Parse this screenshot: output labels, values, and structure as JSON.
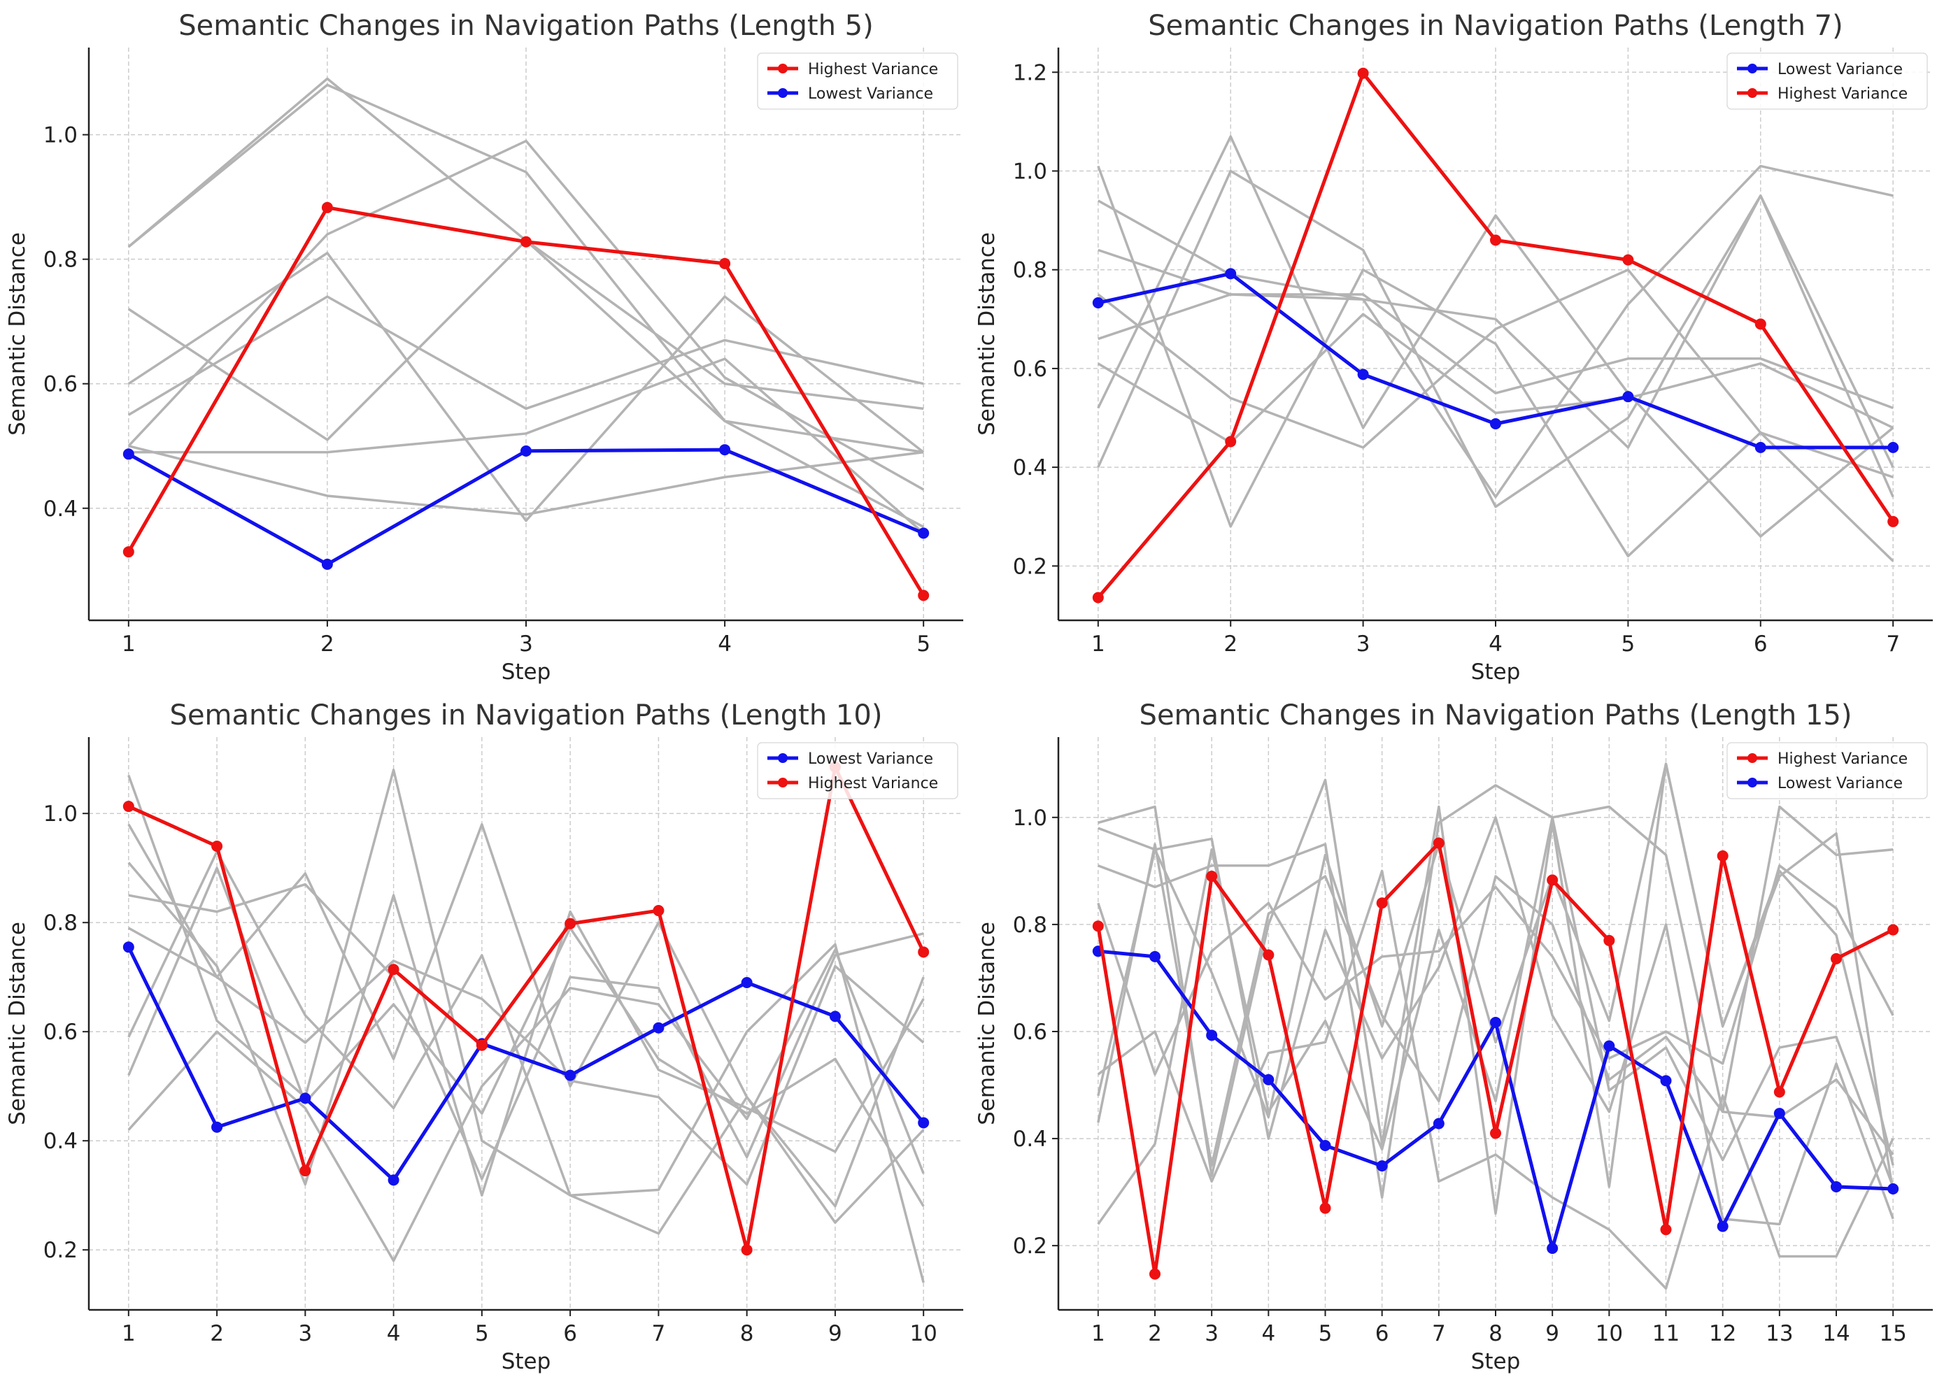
{
  "colors": {
    "highlight_red": "#ee1111",
    "highlight_blue": "#1111ee",
    "background_lines": "#b3b3b3",
    "grid": "#cccccc",
    "legend_border": "#dddddd"
  },
  "chart_data": [
    {
      "type": "line",
      "title": "Semantic Changes in Navigation Paths (Length 5)",
      "xlabel": "Step",
      "ylabel": "Semantic Distance",
      "x": [
        1,
        2,
        3,
        4,
        5
      ],
      "xlim": [
        0.8,
        5.2
      ],
      "ylim": [
        0.22,
        1.14
      ],
      "yticks": [
        0.4,
        0.6,
        0.8,
        1.0
      ],
      "grid": true,
      "legend_position": "top-right",
      "legend_order": [
        "Highest Variance",
        "Lowest Variance"
      ],
      "series": [
        {
          "name": "Highest Variance",
          "color": "#ee1111",
          "values": [
            0.33,
            0.883,
            0.828,
            0.793,
            0.26
          ]
        },
        {
          "name": "Lowest Variance",
          "color": "#1111ee",
          "values": [
            0.487,
            0.31,
            0.492,
            0.494,
            0.36
          ]
        }
      ],
      "background_series": [
        [
          0.82,
          1.09,
          0.83,
          0.54,
          0.49
        ],
        [
          0.82,
          1.08,
          0.94,
          0.54,
          0.37
        ],
        [
          0.72,
          0.51,
          0.83,
          0.6,
          0.56
        ],
        [
          0.55,
          0.74,
          0.56,
          0.67,
          0.6
        ],
        [
          0.6,
          0.81,
          0.38,
          0.74,
          0.49
        ],
        [
          0.5,
          0.84,
          0.99,
          0.61,
          0.43
        ],
        [
          0.49,
          0.49,
          0.52,
          0.64,
          0.36
        ],
        [
          0.5,
          0.42,
          0.39,
          0.45,
          0.49
        ]
      ]
    },
    {
      "type": "line",
      "title": "Semantic Changes in Navigation Paths (Length 7)",
      "xlabel": "Step",
      "ylabel": "Semantic Distance",
      "x": [
        1,
        2,
        3,
        4,
        5,
        6,
        7
      ],
      "xlim": [
        0.7,
        7.3
      ],
      "ylim": [
        0.09,
        1.25
      ],
      "yticks": [
        0.2,
        0.4,
        0.6,
        0.8,
        1.0,
        1.2
      ],
      "grid": true,
      "legend_position": "top-right",
      "legend_order": [
        "Lowest Variance",
        "Highest Variance"
      ],
      "series": [
        {
          "name": "Highest Variance",
          "color": "#ee1111",
          "values": [
            0.136,
            0.452,
            1.198,
            0.86,
            0.82,
            0.69,
            0.29
          ]
        },
        {
          "name": "Lowest Variance",
          "color": "#1111ee",
          "values": [
            0.733,
            0.792,
            0.588,
            0.488,
            0.543,
            0.44,
            0.44
          ]
        }
      ],
      "background_series": [
        [
          1.01,
          0.28,
          0.8,
          0.65,
          0.22,
          0.47,
          0.21
        ],
        [
          0.94,
          0.79,
          0.74,
          0.34,
          0.73,
          1.01,
          0.95
        ],
        [
          0.84,
          0.75,
          0.74,
          0.7,
          0.44,
          0.95,
          0.34
        ],
        [
          0.66,
          0.75,
          0.75,
          0.55,
          0.62,
          0.62,
          0.52
        ],
        [
          0.61,
          0.45,
          0.71,
          0.51,
          0.54,
          0.61,
          0.48
        ],
        [
          0.52,
          1.07,
          0.48,
          0.91,
          0.55,
          0.26,
          0.48
        ],
        [
          0.4,
          1.0,
          0.84,
          0.32,
          0.5,
          0.95,
          0.4
        ],
        [
          0.75,
          0.54,
          0.44,
          0.68,
          0.8,
          0.47,
          0.38
        ]
      ]
    },
    {
      "type": "line",
      "title": "Semantic Changes in Navigation Paths (Length 10)",
      "xlabel": "Step",
      "ylabel": "Semantic Distance",
      "x": [
        1,
        2,
        3,
        4,
        5,
        6,
        7,
        8,
        9,
        10
      ],
      "xlim": [
        0.55,
        10.45
      ],
      "ylim": [
        0.09,
        1.14
      ],
      "yticks": [
        0.2,
        0.4,
        0.6,
        0.8,
        1.0
      ],
      "grid": true,
      "legend_position": "top-right",
      "legend_order": [
        "Lowest Variance",
        "Highest Variance"
      ],
      "series": [
        {
          "name": "Highest Variance",
          "color": "#ee1111",
          "values": [
            1.013,
            0.94,
            0.345,
            0.714,
            0.575,
            0.798,
            0.822,
            0.2,
            1.085,
            0.746
          ]
        },
        {
          "name": "Lowest Variance",
          "color": "#1111ee",
          "values": [
            0.755,
            0.425,
            0.478,
            0.328,
            0.578,
            0.52,
            0.607,
            0.69,
            0.628,
            0.433
          ]
        }
      ],
      "background_series": [
        [
          1.07,
          0.62,
          0.48,
          1.08,
          0.4,
          0.3,
          0.31,
          0.6,
          0.76,
          0.14
        ],
        [
          0.98,
          0.7,
          0.89,
          0.55,
          0.98,
          0.5,
          0.8,
          0.48,
          0.25,
          0.42
        ],
        [
          0.91,
          0.72,
          0.32,
          0.85,
          0.3,
          0.82,
          0.53,
          0.46,
          0.38,
          0.66
        ],
        [
          0.85,
          0.82,
          0.87,
          0.7,
          0.33,
          0.7,
          0.68,
          0.37,
          0.74,
          0.78
        ],
        [
          0.79,
          0.7,
          0.58,
          0.73,
          0.66,
          0.51,
          0.48,
          0.32,
          0.72,
          0.58
        ],
        [
          0.59,
          0.93,
          0.63,
          0.46,
          0.74,
          0.3,
          0.23,
          0.48,
          0.28,
          0.7
        ],
        [
          0.52,
          0.9,
          0.47,
          0.65,
          0.45,
          0.79,
          0.55,
          0.45,
          0.55,
          0.28
        ],
        [
          0.42,
          0.6,
          0.46,
          0.18,
          0.5,
          0.68,
          0.65,
          0.44,
          0.75,
          0.34
        ]
      ]
    },
    {
      "type": "line",
      "title": "Semantic Changes in Navigation Paths (Length 15)",
      "xlabel": "Step",
      "ylabel": "Semantic Distance",
      "x": [
        1,
        2,
        3,
        4,
        5,
        6,
        7,
        8,
        9,
        10,
        11,
        12,
        13,
        14,
        15
      ],
      "xlim": [
        0.3,
        15.7
      ],
      "ylim": [
        0.08,
        1.15
      ],
      "yticks": [
        0.2,
        0.4,
        0.6,
        0.8,
        1.0
      ],
      "grid": true,
      "legend_position": "top-right",
      "legend_order": [
        "Highest Variance",
        "Lowest Variance"
      ],
      "series": [
        {
          "name": "Highest Variance",
          "color": "#ee1111",
          "values": [
            0.797,
            0.147,
            0.89,
            0.743,
            0.27,
            0.84,
            0.952,
            0.41,
            0.883,
            0.77,
            0.23,
            0.928,
            0.487,
            0.736,
            0.79
          ]
        },
        {
          "name": "Lowest Variance",
          "color": "#1111ee",
          "values": [
            0.75,
            0.74,
            0.593,
            0.51,
            0.387,
            0.349,
            0.428,
            0.617,
            0.195,
            0.573,
            0.508,
            0.236,
            0.447,
            0.31,
            0.306
          ]
        }
      ],
      "background_series": [
        [
          0.99,
          1.02,
          0.33,
          0.8,
          1.07,
          0.39,
          1.02,
          0.26,
          0.99,
          0.31,
          1.1,
          0.61,
          0.9,
          0.78,
          0.35
        ],
        [
          0.91,
          0.87,
          0.91,
          0.91,
          0.95,
          0.29,
          0.99,
          1.06,
          1.0,
          1.02,
          0.93,
          0.45,
          1.02,
          0.93,
          0.94
        ],
        [
          0.98,
          0.94,
          0.96,
          0.4,
          0.79,
          0.55,
          0.72,
          1.0,
          0.63,
          0.45,
          0.8,
          0.25,
          0.24,
          0.54,
          0.25
        ],
        [
          0.84,
          0.52,
          0.75,
          0.84,
          0.66,
          0.74,
          0.75,
          0.87,
          0.74,
          0.55,
          0.6,
          0.54,
          0.91,
          0.83,
          0.63
        ],
        [
          0.52,
          0.6,
          0.32,
          0.56,
          0.58,
          0.9,
          0.32,
          0.37,
          0.29,
          0.23,
          0.12,
          0.48,
          0.18,
          0.18,
          0.4
        ],
        [
          0.48,
          0.94,
          0.71,
          0.44,
          0.93,
          0.61,
          0.95,
          0.58,
          0.89,
          0.62,
          1.1,
          0.61,
          0.89,
          0.97,
          0.3
        ],
        [
          0.43,
          0.95,
          0.35,
          0.82,
          0.89,
          0.63,
          0.47,
          0.89,
          0.8,
          0.51,
          0.59,
          0.45,
          0.44,
          0.51,
          0.37
        ],
        [
          0.24,
          0.39,
          0.94,
          0.45,
          0.62,
          0.38,
          0.79,
          0.47,
          1.0,
          0.49,
          0.57,
          0.36,
          0.57,
          0.59,
          0.31
        ]
      ]
    }
  ]
}
